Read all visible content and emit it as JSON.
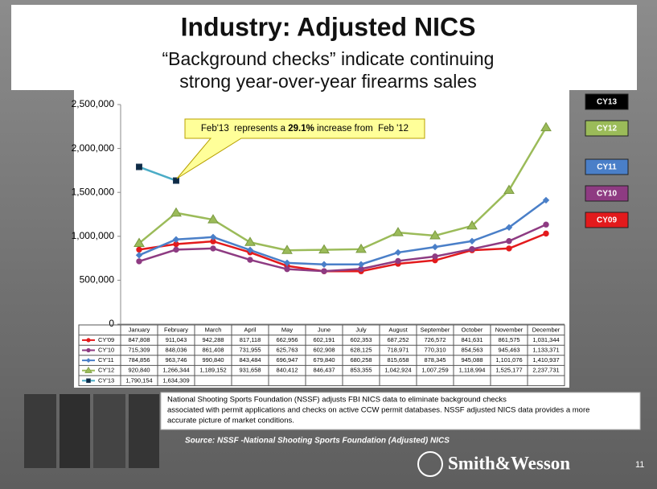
{
  "title": "Industry: Adjusted NICS",
  "subtitle": [
    "“Background checks” indicate continuing",
    "strong year-over-year firearms sales"
  ],
  "chart_data": {
    "type": "line",
    "categories": [
      "January",
      "February",
      "March",
      "April",
      "May",
      "June",
      "July",
      "August",
      "September",
      "October",
      "November",
      "December"
    ],
    "ylim": [
      0,
      2500000
    ],
    "yticks": [
      0,
      {
        "value": 500000,
        "label": "500,000"
      },
      {
        "value": 1000000,
        "label": "1,000,000"
      },
      {
        "value": 1500000,
        "label": "1,500,000"
      },
      {
        "value": 2000000,
        "label": "2,000,000"
      },
      {
        "value": 2500000,
        "label": "2,500,000"
      }
    ],
    "series": [
      {
        "name": "CY'09",
        "color": "#e31a1c",
        "marker": "circle",
        "values": [
          847808,
          911043,
          942288,
          817118,
          662956,
          602191,
          602353,
          687252,
          726572,
          841631,
          861575,
          1031344
        ],
        "value_labels": [
          "847,808",
          "911,043",
          "942,288",
          "817,118",
          "662,956",
          "602,191",
          "602,353",
          "687,252",
          "726,572",
          "841,631",
          "861,575",
          "1,031,344"
        ]
      },
      {
        "name": "CY'10",
        "color": "#8e3b82",
        "marker": "circle",
        "values": [
          715309,
          848036,
          861408,
          731955,
          625763,
          602908,
          628125,
          718971,
          770310,
          854563,
          945463,
          1133371
        ],
        "value_labels": [
          "715,309",
          "848,036",
          "861,408",
          "731,955",
          "625,763",
          "602,908",
          "628,125",
          "718,971",
          "770,310",
          "854,563",
          "945,463",
          "1,133,371"
        ]
      },
      {
        "name": "CY'11",
        "color": "#4a7fc8",
        "marker": "diamond",
        "values": [
          784856,
          963746,
          990840,
          843484,
          696947,
          679840,
          680258,
          815658,
          878345,
          945088,
          1101076,
          1410937
        ],
        "value_labels": [
          "784,856",
          "963,746",
          "990,840",
          "843,484",
          "696,947",
          "679,840",
          "680,258",
          "815,658",
          "878,345",
          "945,088",
          "1,101,076",
          "1,410,937"
        ]
      },
      {
        "name": "CY'12",
        "color": "#9bbb59",
        "marker": "triangle",
        "values": [
          920840,
          1266344,
          1189152,
          931658,
          840412,
          846437,
          853355,
          1042924,
          1007259,
          1118994,
          1525177,
          2237731
        ],
        "value_labels": [
          "920,840",
          "1,266,344",
          "1,189,152",
          "931,658",
          "840,412",
          "846,437",
          "853,355",
          "1,042,924",
          "1,007,259",
          "1,118,994",
          "1,525,177",
          "2,237,731"
        ]
      },
      {
        "name": "CY'13",
        "color": "#4bacc6",
        "marker": "square",
        "values": [
          1790154,
          1634309,
          null,
          null,
          null,
          null,
          null,
          null,
          null,
          null,
          null,
          null
        ],
        "value_labels": [
          "1,790,154",
          "1,634,309",
          null,
          null,
          null,
          null,
          null,
          null,
          null,
          null,
          null,
          null
        ]
      }
    ],
    "annotation": [
      "Feb'13  represents a ",
      "29.1%",
      " increase from  Feb '12"
    ]
  },
  "side_legend": [
    {
      "label": "CY13",
      "color": "#000000"
    },
    {
      "label": "CY12",
      "color": "#9bbb59"
    },
    {
      "label": "CY11",
      "color": "#4a7fc8"
    },
    {
      "label": "CY10",
      "color": "#8e3b82"
    },
    {
      "label": "CY09",
      "color": "#e31a1c"
    }
  ],
  "note": [
    "National Shooting Sports Foundation (NSSF) adjusts FBI NICS data to eliminate background checks",
    "associated with permit applications and checks on active CCW permit databases. NSSF adjusted NICS data provides a more",
    "accurate picture of market conditions."
  ],
  "source": "Source: NSSF -National Shooting Sports Foundation (Adjusted) NICS",
  "logo": "Smith&Wesson",
  "page_number": "11"
}
